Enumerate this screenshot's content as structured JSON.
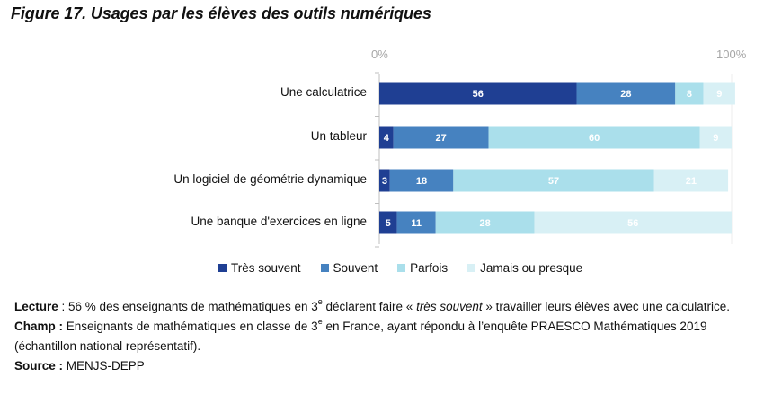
{
  "title": "Figure 17. Usages par les élèves des outils numériques",
  "chart_data": {
    "type": "bar",
    "orientation": "horizontal",
    "stacked": true,
    "percent_stacked": true,
    "title": "Figure 17. Usages par les élèves des outils numériques",
    "xlim": [
      0,
      100
    ],
    "x_tick_labels": [
      "0%",
      "100%"
    ],
    "categories": [
      "Une calculatrice",
      "Un tableur",
      "Un logiciel de géométrie dynamique",
      "Une banque d'exercices en ligne"
    ],
    "series": [
      {
        "name": "Très souvent",
        "color": "#1f3f93",
        "label_color": "#ffffff",
        "values": [
          56,
          4,
          3,
          5
        ]
      },
      {
        "name": "Souvent",
        "color": "#4682c0",
        "label_color": "#ffffff",
        "values": [
          28,
          27,
          18,
          11
        ]
      },
      {
        "name": "Parfois",
        "color": "#aadfeb",
        "label_color": "#ffffff",
        "values": [
          8,
          60,
          57,
          28
        ]
      },
      {
        "name": "Jamais ou presque",
        "color": "#d8f0f5",
        "label_color": "#ffffff",
        "values": [
          9,
          9,
          21,
          56
        ]
      }
    ],
    "legend_position": "bottom",
    "grid": false
  },
  "notes": {
    "lecture_label": "Lecture",
    "lecture_text_1": " : 56 % des enseignants de mathématiques en 3",
    "lecture_sup": "e",
    "lecture_text_2": " déclarent faire « ",
    "lecture_italic": "très souvent",
    "lecture_text_3": "  » travailler leurs élèves avec une calculatrice.",
    "champ_label": "Champ :",
    "champ_text_1": " Enseignants de mathématiques en classe de 3",
    "champ_sup": "e",
    "champ_text_2": " en France, ayant répondu à l’enquête PRAESCO Mathématiques 2019 (échantillon national représentatif).",
    "source_label": "Source :",
    "source_text": " MENJS-DEPP"
  }
}
